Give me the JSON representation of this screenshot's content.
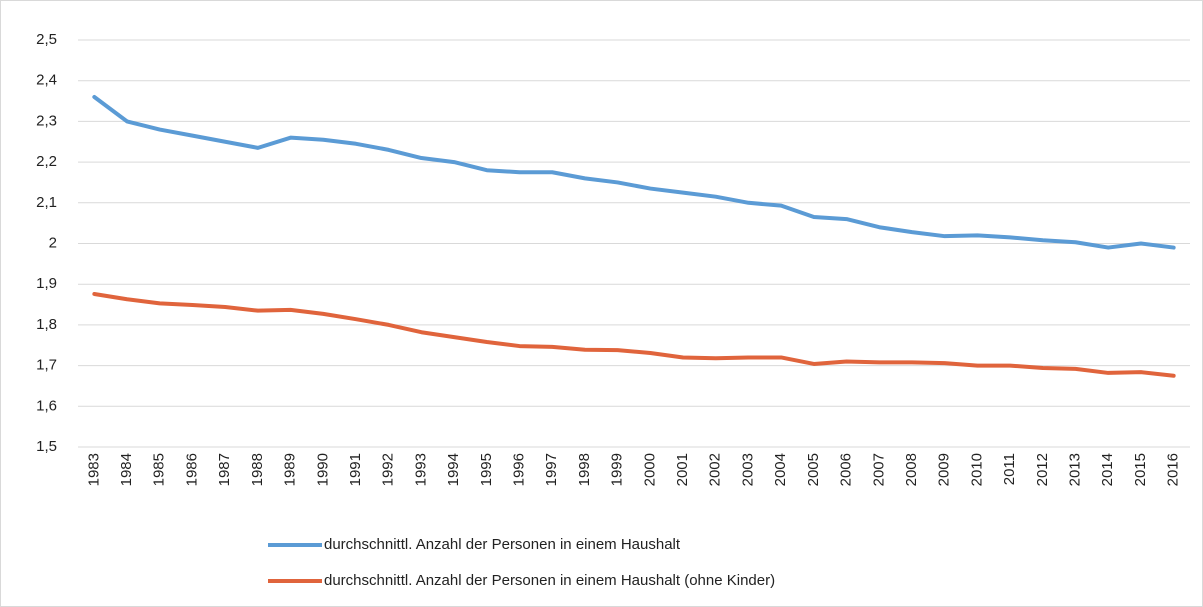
{
  "chart_data": {
    "type": "line",
    "categories": [
      "1983",
      "1984",
      "1985",
      "1986",
      "1987",
      "1988",
      "1989",
      "1990",
      "1991",
      "1992",
      "1993",
      "1994",
      "1995",
      "1996",
      "1997",
      "1998",
      "1999",
      "2000",
      "2001",
      "2002",
      "2003",
      "2004",
      "2005",
      "2006",
      "2007",
      "2008",
      "2009",
      "2010",
      "2011",
      "2012",
      "2013",
      "2014",
      "2015",
      "2016"
    ],
    "series": [
      {
        "name": "durchschnittl. Anzahl der Personen in einem Haushalt",
        "color": "#5b9bd5",
        "values": [
          2.36,
          2.3,
          2.28,
          2.265,
          2.25,
          2.235,
          2.26,
          2.255,
          2.245,
          2.23,
          2.21,
          2.2,
          2.18,
          2.175,
          2.175,
          2.16,
          2.15,
          2.135,
          2.125,
          2.115,
          2.1,
          2.093,
          2.065,
          2.06,
          2.04,
          2.028,
          2.018,
          2.02,
          2.015,
          2.008,
          2.003,
          1.99,
          2.0,
          1.99
        ]
      },
      {
        "name": "durchschnittl. Anzahl der Personen in einem Haushalt (ohne Kinder)",
        "color": "#e0643c",
        "values": [
          1.876,
          1.863,
          1.853,
          1.849,
          1.844,
          1.835,
          1.837,
          1.827,
          1.814,
          1.8,
          1.782,
          1.77,
          1.758,
          1.748,
          1.746,
          1.739,
          1.738,
          1.731,
          1.72,
          1.718,
          1.72,
          1.72,
          1.704,
          1.71,
          1.708,
          1.708,
          1.706,
          1.7,
          1.7,
          1.694,
          1.692,
          1.682,
          1.684,
          1.675
        ]
      }
    ],
    "ylim": [
      1.5,
      2.5
    ],
    "yticks": [
      {
        "value": 1.5,
        "label": "1,5"
      },
      {
        "value": 1.6,
        "label": "1,6"
      },
      {
        "value": 1.7,
        "label": "1,7"
      },
      {
        "value": 1.8,
        "label": "1,8"
      },
      {
        "value": 1.9,
        "label": "1,9"
      },
      2,
      {
        "value": 2.1,
        "label": "2,1"
      },
      {
        "value": 2.2,
        "label": "2,2"
      },
      {
        "value": 2.3,
        "label": "2,3"
      },
      {
        "value": 2.4,
        "label": "2,4"
      },
      {
        "value": 2.5,
        "label": "2,5"
      }
    ],
    "grid": true,
    "legend": "bottom"
  }
}
